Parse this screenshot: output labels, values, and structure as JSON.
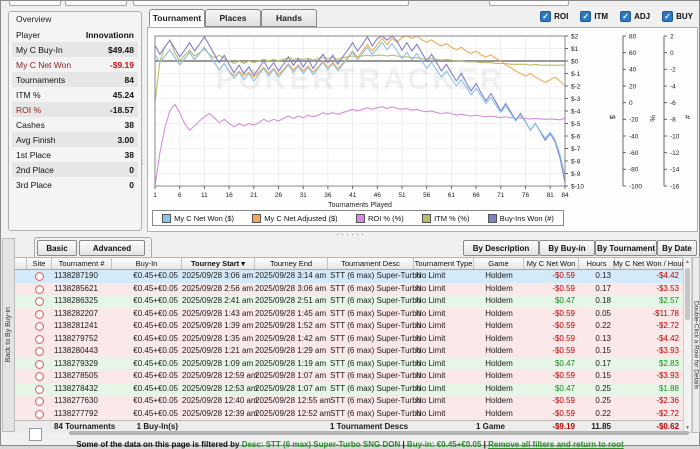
{
  "ui": {
    "splitter_dots": "······",
    "sort_indicator": "▾"
  },
  "overview": {
    "title": "Overview",
    "rows": [
      {
        "label": "Player",
        "value": "Innovationn"
      },
      {
        "label": "My C Buy-In",
        "value": "$49.48"
      },
      {
        "label": "My C Net Won",
        "value": "-$9.19",
        "label_tone": "neg",
        "value_tone": "neg"
      },
      {
        "label": "Tournaments",
        "value": "84"
      },
      {
        "label": "ITM %",
        "value": "45.24"
      },
      {
        "label": "ROI %",
        "value": "-18.57",
        "label_tone": "neg"
      },
      {
        "label": "Cashes",
        "value": "38"
      },
      {
        "label": "Avg Finish",
        "value": "3.00"
      },
      {
        "label": "1st Place",
        "value": "38"
      },
      {
        "label": "2nd Place",
        "value": "0"
      },
      {
        "label": "3rd Place",
        "value": "0"
      }
    ]
  },
  "tabs": {
    "items": [
      "Tournament",
      "Places",
      "Hands"
    ],
    "active": 0
  },
  "checkboxes": [
    {
      "label": "ROI",
      "checked": true
    },
    {
      "label": "ITM",
      "checked": true
    },
    {
      "label": "ADJ",
      "checked": true
    },
    {
      "label": "BUY",
      "checked": true
    }
  ],
  "chart_data": {
    "type": "line",
    "xlabel": "Tournaments Played",
    "x_range": [
      1,
      84
    ],
    "x_ticks": [
      1,
      6,
      11,
      16,
      21,
      26,
      31,
      36,
      41,
      46,
      51,
      56,
      61,
      66,
      71,
      76,
      81,
      84
    ],
    "watermark": "POKERTRACKER",
    "legend_position": "bottom",
    "grid": true,
    "axes": [
      {
        "unit": "$",
        "min": -10,
        "max": 2,
        "ticks": [
          2,
          1,
          0,
          -1,
          -2,
          -3,
          -4,
          -5,
          -6,
          -7,
          -8,
          -9,
          -10
        ],
        "labels": [
          "$2",
          "$1",
          "$0",
          "$-1",
          "$-2",
          "$-3",
          "$-4",
          "$-5",
          "$-6",
          "$-7",
          "$-8",
          "$-9",
          "$-10"
        ]
      },
      {
        "unit": "%",
        "min": -100,
        "max": 80,
        "ticks": [
          80,
          60,
          40,
          20,
          0,
          -20,
          -40,
          -60,
          -80,
          -100
        ],
        "labels": [
          "80",
          "60",
          "40",
          "20",
          "0",
          "-20",
          "-40",
          "-60",
          "-80",
          "-100"
        ]
      },
      {
        "unit": "#",
        "min": -16,
        "max": 2,
        "ticks": [
          2,
          0,
          -2,
          -4,
          -6,
          -8,
          -10,
          -12,
          -14,
          -16
        ],
        "labels": [
          "2",
          "0",
          "-2",
          "-4",
          "-6",
          "-8",
          "-10",
          "-12",
          "-14",
          "-16"
        ]
      }
    ],
    "series": [
      {
        "name": "ITM % (%)",
        "axis": "%",
        "color": "#bcbc6a",
        "values": [
          0,
          50,
          67,
          75,
          60,
          50,
          57,
          63,
          56,
          60,
          64,
          58,
          54,
          57,
          53,
          50,
          47,
          50,
          47,
          50,
          48,
          50,
          52,
          50,
          52,
          50,
          52,
          54,
          52,
          53,
          52,
          53,
          51,
          53,
          54,
          53,
          54,
          52,
          54,
          55,
          56,
          55,
          56,
          57,
          56,
          57,
          57,
          56,
          57,
          56,
          55,
          55,
          54,
          54,
          53,
          52,
          53,
          52,
          51,
          52,
          51,
          50,
          50,
          49,
          49,
          49,
          48,
          48,
          48,
          47,
          47,
          47,
          46,
          46,
          46,
          46,
          45,
          46,
          45,
          45,
          45,
          45,
          45,
          45.2
        ]
      },
      {
        "name": "ROI % (%)",
        "axis": "%",
        "color": "#d78be0",
        "values": [
          -100,
          -60,
          -30,
          -10,
          -2,
          -12,
          -25,
          -33,
          -28,
          -22,
          -17,
          -13,
          -18,
          -24,
          -20,
          -25,
          -29,
          -25,
          -28,
          -25,
          -27,
          -24,
          -20,
          -23,
          -20,
          -22,
          -19,
          -16,
          -19,
          -16,
          -18,
          -15,
          -17,
          -15,
          -12,
          -14,
          -12,
          -14,
          -12,
          -10,
          -8,
          -10,
          -8,
          -6,
          -8,
          -6,
          -5,
          -7,
          -5,
          -7,
          -8,
          -7,
          -9,
          -8,
          -10,
          -11,
          -10,
          -12,
          -13,
          -12,
          -13,
          -15,
          -14,
          -15,
          -16,
          -15,
          -16,
          -17,
          -16,
          -17,
          -18,
          -17,
          -18,
          -19,
          -18,
          -19,
          -19.5,
          -19,
          -19.5,
          -20,
          -19.5,
          -20,
          -20.5,
          -18.6
        ]
      },
      {
        "name": "My C Net Adjusted ($)",
        "axis": "$",
        "color": "#f3a952",
        "values": [
          0.5,
          -0.1,
          0.4,
          0.9,
          0.3,
          -0.3,
          0.2,
          0.7,
          0.1,
          0.6,
          1.1,
          0.5,
          -0.1,
          -0.7,
          -0.2,
          -0.8,
          -1.2,
          -0.8,
          -1.2,
          -0.9,
          -1.3,
          -0.9,
          -0.5,
          -1.0,
          -0.6,
          -1.1,
          -0.7,
          -0.2,
          -0.7,
          -0.3,
          -0.8,
          -0.4,
          -0.9,
          -0.5,
          0.0,
          -0.5,
          -0.1,
          -0.6,
          -0.2,
          0.3,
          0.8,
          0.3,
          0.8,
          1.3,
          0.8,
          1.3,
          1.8,
          1.3,
          1.8,
          1.5,
          1.9,
          2.0,
          1.8,
          2.0,
          1.7,
          1.5,
          1.7,
          1.4,
          1.2,
          1.4,
          1.1,
          0.9,
          1.1,
          0.8,
          0.6,
          0.8,
          0.5,
          0.3,
          0.5,
          0.2,
          0.0,
          -0.3,
          -0.5,
          -0.8,
          -1.0,
          -1.2,
          -1.0,
          -1.3,
          -1.5,
          -1.7,
          -1.5,
          -1.3,
          -1.6,
          -2.0
        ]
      },
      {
        "name": "Buy-Ins Won (#)",
        "axis": "#",
        "color": "#8181cc",
        "values": [
          0.9,
          -0.2,
          0.7,
          1.5,
          0.5,
          -0.5,
          0.3,
          1.2,
          0.2,
          1.0,
          1.9,
          0.9,
          -0.2,
          -1.2,
          -0.3,
          -1.4,
          -2.4,
          -1.5,
          -2.5,
          -1.7,
          -2.7,
          -1.9,
          -1.0,
          -2.0,
          -1.2,
          -2.2,
          -1.4,
          -0.5,
          -1.5,
          -0.7,
          -1.7,
          -0.8,
          -1.9,
          -1.0,
          -0.2,
          -1.2,
          -0.3,
          -1.4,
          -0.5,
          0.3,
          1.2,
          0.2,
          1.0,
          1.9,
          0.8,
          1.7,
          2.0,
          1.5,
          2.0,
          1.4,
          0.3,
          1.2,
          0.2,
          1.0,
          0.0,
          -1.0,
          -0.2,
          -1.2,
          -2.2,
          -1.4,
          -2.4,
          -3.4,
          -2.5,
          -3.6,
          -4.6,
          -3.7,
          -4.8,
          -5.8,
          -4.9,
          -5.9,
          -7.0,
          -6.1,
          -7.1,
          -8.1,
          -7.3,
          -8.3,
          -9.3,
          -8.5,
          -9.5,
          -10.5,
          -9.7,
          -10.7,
          -12.7,
          -15.6
        ]
      },
      {
        "name": "My C Net Won ($)",
        "axis": "$",
        "color": "#85c5ee",
        "values": [
          0.5,
          -0.1,
          0.4,
          0.9,
          0.3,
          -0.3,
          0.2,
          0.7,
          0.1,
          0.6,
          1.1,
          0.5,
          -0.1,
          -0.7,
          -0.2,
          -0.8,
          -1.4,
          -0.9,
          -1.5,
          -1.0,
          -1.6,
          -1.1,
          -0.6,
          -1.2,
          -0.7,
          -1.3,
          -0.8,
          -0.3,
          -0.9,
          -0.4,
          -1.0,
          -0.5,
          -1.1,
          -0.6,
          -0.1,
          -0.7,
          -0.2,
          -0.8,
          -0.3,
          0.2,
          0.7,
          0.1,
          0.6,
          1.1,
          0.5,
          1.0,
          1.5,
          0.9,
          1.4,
          0.8,
          0.2,
          0.7,
          0.1,
          0.6,
          0.0,
          -0.6,
          -0.1,
          -0.7,
          -1.3,
          -0.8,
          -1.4,
          -2.0,
          -1.5,
          -2.1,
          -2.7,
          -2.2,
          -2.8,
          -3.4,
          -2.9,
          -3.5,
          -4.1,
          -3.6,
          -4.2,
          -4.8,
          -4.3,
          -4.9,
          -5.5,
          -5.0,
          -5.6,
          -6.2,
          -5.7,
          -6.3,
          -7.5,
          -9.19
        ]
      }
    ],
    "legend_order": [
      "My C Net Won ($)",
      "My C Net Adjusted ($)",
      "ROI % (%)",
      "ITM % (%)",
      "Buy-Ins Won (#)"
    ]
  },
  "filter_buttons_left": [
    "Basic",
    "Advanced"
  ],
  "filter_buttons_right": [
    "By Description",
    "By Buy-in",
    "By Tournament",
    "By Date"
  ],
  "side_strips": {
    "left": "Back to By Buy-in",
    "right": "Double-Click a Row for Details"
  },
  "table": {
    "columns": [
      {
        "key": "handle",
        "label": "",
        "w": 12,
        "align": "left"
      },
      {
        "key": "site",
        "label": "Site",
        "w": 25,
        "align": "center"
      },
      {
        "key": "num",
        "label": "Tournament #",
        "w": 60,
        "align": "left"
      },
      {
        "key": "buyin",
        "label": "Buy-In",
        "w": 70,
        "align": "right"
      },
      {
        "key": "start",
        "label": "Tourney Start",
        "w": 73,
        "align": "right",
        "sorted": true
      },
      {
        "key": "end",
        "label": "Tourney End",
        "w": 73,
        "align": "right"
      },
      {
        "key": "desc",
        "label": "Tournament Desc",
        "w": 86,
        "align": "left"
      },
      {
        "key": "type",
        "label": "Tournament Type",
        "w": 60,
        "align": "left"
      },
      {
        "key": "game",
        "label": "Game",
        "w": 50,
        "align": "center"
      },
      {
        "key": "net",
        "label": "My C Net Won",
        "w": 55,
        "align": "right"
      },
      {
        "key": "hours",
        "label": "Hours",
        "w": 36,
        "align": "right"
      },
      {
        "key": "perhour",
        "label": "My C Net Won / Hour",
        "w": 68,
        "align": "right"
      }
    ],
    "rows": [
      {
        "tone": "sel",
        "num": "1138287190",
        "buyin": "€0.45+€0.05",
        "start": "2025/09/28 3:06 am",
        "end": "2025/09/28 3:14 am",
        "desc": "STT (6 max) Super-Turbo",
        "type": "No Limit",
        "game": "Holdem",
        "net": "-$0.59",
        "hours": "0.13",
        "perhour": "-$4.42"
      },
      {
        "tone": "neg",
        "num": "1138285621",
        "buyin": "€0.45+€0.05",
        "start": "2025/09/28 2:56 am",
        "end": "2025/09/28 3:06 am",
        "desc": "STT (6 max) Super-Turbo",
        "type": "No Limit",
        "game": "Holdem",
        "net": "-$0.59",
        "hours": "0.17",
        "perhour": "-$3.53"
      },
      {
        "tone": "pos",
        "num": "1138286325",
        "buyin": "€0.45+€0.05",
        "start": "2025/09/28 2:41 am",
        "end": "2025/09/28 2:51 am",
        "desc": "STT (6 max) Super-Turbo",
        "type": "No Limit",
        "game": "Holdem",
        "net": "$0.47",
        "hours": "0.18",
        "perhour": "$2.57"
      },
      {
        "tone": "neg",
        "num": "1138282207",
        "buyin": "€0.45+€0.05",
        "start": "2025/09/28 1:43 am",
        "end": "2025/09/28 1:45 am",
        "desc": "STT (6 max) Super-Turbo",
        "type": "No Limit",
        "game": "Holdem",
        "net": "-$0.59",
        "hours": "0.05",
        "perhour": "-$11.78"
      },
      {
        "tone": "neg",
        "num": "1138281241",
        "buyin": "€0.45+€0.05",
        "start": "2025/09/28 1:39 am",
        "end": "2025/09/28 1:52 am",
        "desc": "STT (6 max) Super-Turbo",
        "type": "No Limit",
        "game": "Holdem",
        "net": "-$0.59",
        "hours": "0.22",
        "perhour": "-$2.72"
      },
      {
        "tone": "neg",
        "num": "1138279752",
        "buyin": "€0.45+€0.05",
        "start": "2025/09/28 1:35 am",
        "end": "2025/09/28 1:42 am",
        "desc": "STT (6 max) Super-Turbo",
        "type": "No Limit",
        "game": "Holdem",
        "net": "-$0.59",
        "hours": "0.13",
        "perhour": "-$4.42"
      },
      {
        "tone": "neg",
        "num": "1138280443",
        "buyin": "€0.45+€0.05",
        "start": "2025/09/28 1:21 am",
        "end": "2025/09/28 1:29 am",
        "desc": "STT (6 max) Super-Turbo",
        "type": "No Limit",
        "game": "Holdem",
        "net": "-$0.59",
        "hours": "0.15",
        "perhour": "-$3.93"
      },
      {
        "tone": "pos",
        "num": "1138279329",
        "buyin": "€0.45+€0.05",
        "start": "2025/09/28 1:09 am",
        "end": "2025/09/28 1:19 am",
        "desc": "STT (6 max) Super-Turbo",
        "type": "No Limit",
        "game": "Holdem",
        "net": "$0.47",
        "hours": "0.17",
        "perhour": "$2.83"
      },
      {
        "tone": "neg",
        "num": "1138278505",
        "buyin": "€0.45+€0.05",
        "start": "2025/09/28 12:59 am",
        "end": "2025/09/28 1:07 am",
        "desc": "STT (6 max) Super-Turbo",
        "type": "No Limit",
        "game": "Holdem",
        "net": "-$0.59",
        "hours": "0.15",
        "perhour": "-$3.93"
      },
      {
        "tone": "pos",
        "num": "1138278432",
        "buyin": "€0.45+€0.05",
        "start": "2025/09/28 12:53 am",
        "end": "2025/09/28 1:07 am",
        "desc": "STT (6 max) Super-Turbo",
        "type": "No Limit",
        "game": "Holdem",
        "net": "$0.47",
        "hours": "0.25",
        "perhour": "$1.88"
      },
      {
        "tone": "neg",
        "num": "1138277630",
        "buyin": "€0.45+€0.05",
        "start": "2025/09/28 12:40 am",
        "end": "2025/09/28 12:55 am",
        "desc": "STT (6 max) Super-Turbo",
        "type": "No Limit",
        "game": "Holdem",
        "net": "-$0.59",
        "hours": "0.25",
        "perhour": "-$2.36"
      },
      {
        "tone": "neg",
        "num": "1138277792",
        "buyin": "€0.45+€0.05",
        "start": "2025/09/28 12:39 am",
        "end": "2025/09/28 12:52 am",
        "desc": "STT (6 max) Super-Turbo",
        "type": "No Limit",
        "game": "Holdem",
        "net": "-$0.59",
        "hours": "0.22",
        "perhour": "-$2.72"
      }
    ],
    "footer": {
      "num": "84 Tournaments",
      "buyin": "1 Buy-In(s)",
      "desc": "1 Tournament Descs",
      "game": "1 Game",
      "net": "-$9.19",
      "hours": "11.85",
      "perhour": "-$0.62"
    }
  },
  "status": {
    "prefix": "Some of the data on this page is filtered by ",
    "parts": [
      {
        "text": "Desc: STT (6 max) Super-Turbo SNG DON",
        "link": true
      },
      {
        "text": " | ",
        "link": false
      },
      {
        "text": "Buy-in: €0.45+€0.05",
        "link": true
      },
      {
        "text": " | ",
        "link": false
      },
      {
        "text": "Remove all filters and return to root",
        "link": true,
        "underline": true
      }
    ]
  },
  "colors": {
    "accent_check": "#2b79c2",
    "negative": "#c00000",
    "positive": "#1a8a1a",
    "row_selected": "#d5eaf8",
    "row_loss": "#fbe8e8",
    "row_win": "#e6f6e6"
  }
}
